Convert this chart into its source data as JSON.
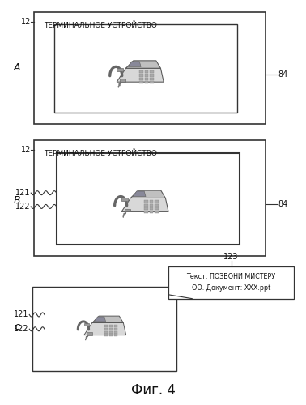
{
  "fig_bg": "#ffffff",
  "title": "Фиг. 4",
  "terminal_label": "ТЕРМИНАЛЬНОЕ УСТРОЙСТВО",
  "info_box_line1": "Текст: ПОЗВОНИ МИСТЕРУ",
  "info_box_line2": "ОО. Документ: ХХХ.ppt",
  "lbl_A": "A",
  "lbl_B": "B",
  "lbl_C": "c",
  "lbl_12": "12",
  "lbl_84": "84",
  "lbl_121": "121",
  "lbl_122": "122",
  "lbl_123": "123",
  "edge_color": "#333333",
  "light_gray": "#e8e8e8",
  "white": "#ffffff"
}
